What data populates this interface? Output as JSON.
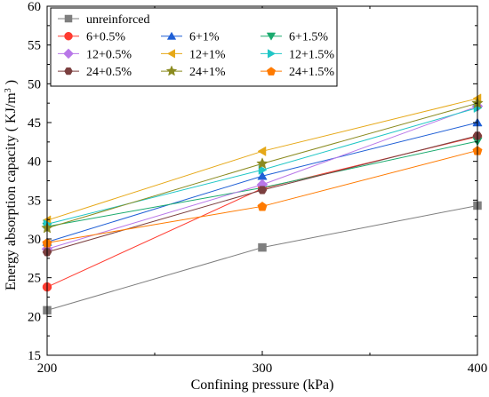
{
  "chart_data": {
    "type": "line",
    "x": [
      200,
      300,
      400
    ],
    "xlabel": "Confining pressure (kPa)",
    "ylabel_main": "Energy absorption capacity ( KJ/m",
    "ylabel_sup": "3",
    "ylabel_close": " )",
    "xlim": [
      200,
      400
    ],
    "ylim": [
      15,
      60
    ],
    "xticks": [
      "200",
      "300",
      "400"
    ],
    "yticks": [
      "15",
      "20",
      "25",
      "30",
      "35",
      "40",
      "45",
      "50",
      "55",
      "60"
    ],
    "grid": false,
    "legend_position": "top-left",
    "series": [
      {
        "name": "unreinforced",
        "color": "#7f7f7f",
        "marker": "square",
        "values": [
          20.8,
          28.9,
          34.3
        ]
      },
      {
        "name": "6+0.5%",
        "color": "#ff3b30",
        "marker": "circle",
        "values": [
          23.8,
          36.5,
          43.2
        ]
      },
      {
        "name": "6+1%",
        "color": "#1f5fd6",
        "marker": "triangle-up",
        "values": [
          29.6,
          38.1,
          45.0
        ]
      },
      {
        "name": "6+1.5%",
        "color": "#1aaa6e",
        "marker": "triangle-down",
        "values": [
          31.6,
          36.6,
          42.6
        ]
      },
      {
        "name": "12+0.5%",
        "color": "#b877e8",
        "marker": "diamond",
        "values": [
          28.7,
          37.0,
          47.1
        ]
      },
      {
        "name": "12+1%",
        "color": "#e6a817",
        "marker": "triangle-left",
        "values": [
          32.4,
          41.3,
          48.1
        ]
      },
      {
        "name": "12+1.5%",
        "color": "#20c6c6",
        "marker": "triangle-right",
        "values": [
          31.9,
          38.9,
          46.9
        ]
      },
      {
        "name": "24+0.5%",
        "color": "#7b3f3f",
        "marker": "hexagon",
        "values": [
          28.3,
          36.3,
          43.3
        ]
      },
      {
        "name": "24+1%",
        "color": "#8a8a1f",
        "marker": "star",
        "values": [
          31.4,
          39.7,
          47.5
        ]
      },
      {
        "name": "24+1.5%",
        "color": "#ff7a00",
        "marker": "pentagon",
        "values": [
          29.5,
          34.2,
          41.4
        ]
      }
    ]
  }
}
